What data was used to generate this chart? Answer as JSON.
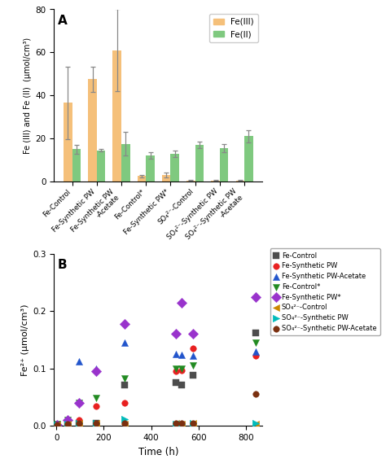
{
  "bar_categories": [
    "Fe-Control",
    "Fe-Synthetic PW",
    "Fe-Synthetic PW\n-Acetate",
    "Fe-Control*",
    "Fe-Synthetic PW*",
    "SO₄²⁻-Control",
    "SO₄²⁻-Synthetic PW",
    "SO₄²⁻-Synthetic PW\n-Acetate"
  ],
  "fe3_values": [
    36.5,
    47.5,
    61.0,
    2.5,
    3.0,
    0.5,
    0.5,
    0.5
  ],
  "fe2_values": [
    15.0,
    14.5,
    17.5,
    12.0,
    13.0,
    17.0,
    15.5,
    21.0
  ],
  "fe3_errors": [
    17.0,
    6.0,
    19.0,
    0.5,
    1.0,
    0.2,
    0.2,
    0.2
  ],
  "fe2_errors": [
    2.0,
    0.5,
    5.5,
    1.5,
    1.5,
    1.5,
    2.0,
    3.0
  ],
  "fe3_color": "#F5C07A",
  "fe2_color": "#7FC97F",
  "bar_ylim": [
    0,
    80
  ],
  "bar_yticks": [
    0,
    20,
    40,
    60,
    80
  ],
  "panel_a_label": "A",
  "panel_b_label": "B",
  "bar_ylabel": "Fe (III) and Fe (II)  (µmol/cm³)",
  "scatter_ylabel": "Fe²⁺ (µmol/cm³)",
  "scatter_xlabel": "Time (h)",
  "scatter_xlim": [
    -10,
    870
  ],
  "scatter_ylim": [
    0,
    0.3
  ],
  "scatter_yticks": [
    0.0,
    0.1,
    0.2,
    0.3
  ],
  "scatter_xticks": [
    0,
    200,
    400,
    600,
    800
  ],
  "series": {
    "Fe-Control": {
      "color": "#4d4d4d",
      "marker": "s",
      "times": [
        3,
        48,
        96,
        168,
        288,
        504,
        528,
        576,
        840
      ],
      "values": [
        0.002,
        0.002,
        0.005,
        0.005,
        0.071,
        0.075,
        0.071,
        0.088,
        0.162
      ]
    },
    "Fe-Synthetic PW": {
      "color": "#e82020",
      "marker": "o",
      "times": [
        3,
        48,
        96,
        168,
        288,
        504,
        528,
        576,
        840
      ],
      "values": [
        0.001,
        0.003,
        0.01,
        0.035,
        0.04,
        0.096,
        0.097,
        0.135,
        0.122
      ]
    },
    "Fe-Synthetic PW-Acetate": {
      "color": "#2255cc",
      "marker": "^",
      "times": [
        3,
        48,
        96,
        168,
        288,
        504,
        528,
        576,
        840
      ],
      "values": [
        0.001,
        0.003,
        0.112,
        0.1,
        0.145,
        0.125,
        0.124,
        0.122,
        0.13
      ]
    },
    "Fe-Control*": {
      "color": "#228B22",
      "marker": "v",
      "times": [
        3,
        48,
        96,
        168,
        288,
        504,
        528,
        576,
        840
      ],
      "values": [
        0.003,
        0.01,
        0.04,
        0.048,
        0.082,
        0.1,
        0.1,
        0.105,
        0.145
      ]
    },
    "Fe-Synthetic PW*": {
      "color": "#9933cc",
      "marker": "D",
      "times": [
        3,
        48,
        96,
        168,
        288,
        504,
        528,
        576,
        840
      ],
      "values": [
        0.002,
        0.01,
        0.04,
        0.095,
        0.178,
        0.16,
        0.215,
        0.16,
        0.225
      ]
    },
    "SO42-Control": {
      "color": "#cc8800",
      "marker": "<",
      "times": [
        3,
        48,
        96,
        168,
        288,
        504,
        528,
        576,
        840
      ],
      "values": [
        0.002,
        0.003,
        0.004,
        0.004,
        0.003,
        0.004,
        0.003,
        0.004,
        0.003
      ]
    },
    "SO42-Synthetic PW": {
      "color": "#00bbbb",
      "marker": ">",
      "times": [
        3,
        48,
        96,
        168,
        288,
        504,
        528,
        576,
        840
      ],
      "values": [
        0.002,
        0.003,
        0.004,
        0.004,
        0.012,
        0.003,
        0.003,
        0.004,
        0.005
      ]
    },
    "SO42-Synthetic PW-Acetate": {
      "color": "#7B3010",
      "marker": "o",
      "times": [
        3,
        48,
        96,
        168,
        288,
        504,
        528,
        576,
        840
      ],
      "values": [
        0.002,
        0.003,
        0.004,
        0.004,
        0.004,
        0.004,
        0.004,
        0.004,
        0.055
      ]
    }
  },
  "legend_labels": [
    "Fe-Control",
    "Fe-Synthetic PW",
    "Fe-Synthetic PW-Acetate",
    "Fe-Control*",
    "Fe-Synthetic PW*",
    "SO₄²⁻-Control",
    "SO₄²⁻-Synthetic PW",
    "SO₄²⁻-Synthetic PW-Acetate"
  ],
  "marker_sizes": [
    30,
    30,
    35,
    35,
    40,
    35,
    38,
    30
  ]
}
